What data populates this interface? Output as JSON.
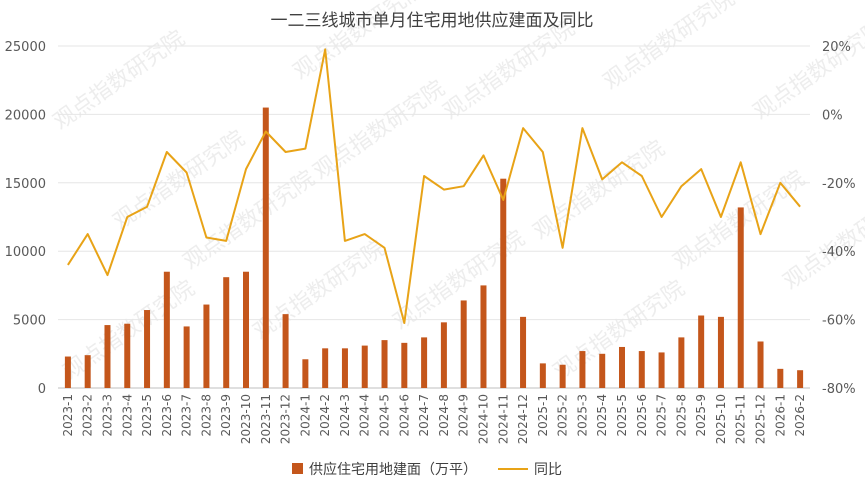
{
  "chart_data": {
    "type": "bar+line",
    "title": "一二三线城市单月住宅用地供应建面及同比",
    "watermark": "观点指数研究院",
    "categories": [
      "2023-1",
      "2023-2",
      "2023-3",
      "2023-4",
      "2023-5",
      "2023-6",
      "2023-7",
      "2023-8",
      "2023-9",
      "2023-10",
      "2023-11",
      "2023-12",
      "2024-1",
      "2024-2",
      "2024-3",
      "2024-4",
      "2024-5",
      "2024-6",
      "2024-7",
      "2024-8",
      "2024-9",
      "2024-10",
      "2024-11",
      "2024-12",
      "2025-1",
      "2025-2",
      "2025-3",
      "2025-4",
      "2025-5",
      "2025-6",
      "2025-7",
      "2025-8",
      "2025-9",
      "2025-10",
      "2025-11",
      "2025-12",
      "2026-1",
      "2026-2"
    ],
    "series": [
      {
        "name": "供应住宅用地建面（万平）",
        "type": "bar",
        "axis": "left",
        "color": "#c4561b",
        "values": [
          2300,
          2400,
          4600,
          4700,
          5700,
          8500,
          4500,
          6100,
          8100,
          8500,
          20500,
          5400,
          2100,
          2900,
          2900,
          3100,
          3500,
          3300,
          3700,
          4800,
          6400,
          7500,
          15300,
          5200,
          1800,
          1700,
          2700,
          2500,
          3000,
          2700,
          2600,
          3700,
          5300,
          5200,
          13200,
          3400,
          1400,
          1300
        ]
      },
      {
        "name": "同比",
        "type": "line",
        "axis": "right",
        "color": "#e8a317",
        "values": [
          -44,
          -35,
          -47,
          -30,
          -27,
          -11,
          -17,
          -36,
          -37,
          -16,
          -5,
          -11,
          -10,
          19,
          -37,
          -35,
          -39,
          -61,
          -18,
          -22,
          -21,
          -12,
          -25,
          -4,
          -11,
          -39,
          -4,
          -19,
          -14,
          -18,
          -30,
          -21,
          -16,
          -30,
          -14,
          -35,
          -20,
          -27
        ]
      }
    ],
    "left_axis": {
      "ylim": [
        0,
        25000
      ],
      "ticks": [
        "0",
        "5000",
        "10000",
        "15000",
        "20000",
        "25000"
      ]
    },
    "right_axis": {
      "ylim": [
        -80,
        20
      ],
      "ticks": [
        "-80%",
        "-60%",
        "-40%",
        "-20%",
        "0%",
        "20%"
      ]
    },
    "grid": true,
    "legend_position": "bottom"
  }
}
